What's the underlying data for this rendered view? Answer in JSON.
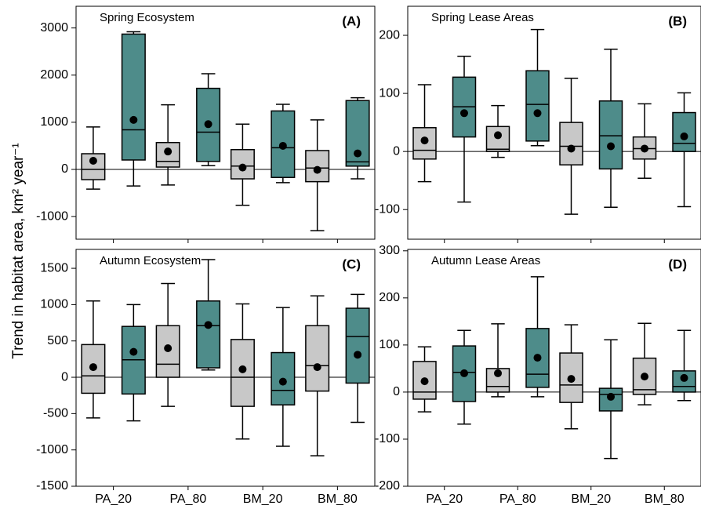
{
  "y_label": "Trend in habitat area, km² year⁻¹",
  "chart_data": [
    {
      "type": "box",
      "title": "Spring Ecosystem",
      "panel_label": "(A)",
      "ylim": [
        -1480,
        3460
      ],
      "yticks": [
        -1000,
        0,
        1000,
        2000,
        3000
      ],
      "groups": [
        {
          "label": "PA_20",
          "boxes": [
            {
              "color": "#c8c8c8",
              "whisker_low": -417,
              "q1": -217,
              "median": 0,
              "q3": 333,
              "whisker_high": 900,
              "mean": 183
            },
            {
              "color": "#4e8c8a",
              "whisker_low": -350,
              "q1": 200,
              "median": 840,
              "q3": 2870,
              "whisker_high": 2920,
              "mean": 1050
            }
          ]
        },
        {
          "label": "PA_80",
          "boxes": [
            {
              "color": "#c8c8c8",
              "whisker_low": -330,
              "q1": 50,
              "median": 170,
              "q3": 570,
              "whisker_high": 1370,
              "mean": 380
            },
            {
              "color": "#4e8c8a",
              "whisker_low": 80,
              "q1": 170,
              "median": 790,
              "q3": 1720,
              "whisker_high": 2030,
              "mean": 960
            }
          ]
        },
        {
          "label": "BM_20",
          "boxes": [
            {
              "color": "#c8c8c8",
              "whisker_low": -760,
              "q1": -200,
              "median": 70,
              "q3": 420,
              "whisker_high": 960,
              "mean": 40
            },
            {
              "color": "#4e8c8a",
              "whisker_low": -280,
              "q1": -170,
              "median": 460,
              "q3": 1240,
              "whisker_high": 1380,
              "mean": 500
            }
          ]
        },
        {
          "label": "BM_80",
          "boxes": [
            {
              "color": "#c8c8c8",
              "whisker_low": -1300,
              "q1": -260,
              "median": 30,
              "q3": 400,
              "whisker_high": 1050,
              "mean": -10
            },
            {
              "color": "#4e8c8a",
              "whisker_low": -200,
              "q1": 70,
              "median": 160,
              "q3": 1460,
              "whisker_high": 1520,
              "mean": 340
            }
          ]
        }
      ]
    },
    {
      "type": "box",
      "title": "Spring Lease Areas",
      "panel_label": "(B)",
      "ylim": [
        -151,
        250
      ],
      "yticks": [
        -100,
        0,
        100,
        200
      ],
      "groups": [
        {
          "label": "PA_20",
          "boxes": [
            {
              "color": "#c8c8c8",
              "whisker_low": -52,
              "q1": -13,
              "median": 2,
              "q3": 41,
              "whisker_high": 115,
              "mean": 19
            },
            {
              "color": "#4e8c8a",
              "whisker_low": -87,
              "q1": 25,
              "median": 77,
              "q3": 128,
              "whisker_high": 164,
              "mean": 66
            }
          ]
        },
        {
          "label": "PA_80",
          "boxes": [
            {
              "color": "#c8c8c8",
              "whisker_low": -10,
              "q1": 0,
              "median": 4,
              "q3": 43,
              "whisker_high": 79,
              "mean": 28
            },
            {
              "color": "#4e8c8a",
              "whisker_low": 10,
              "q1": 18,
              "median": 81,
              "q3": 139,
              "whisker_high": 210,
              "mean": 66
            }
          ]
        },
        {
          "label": "BM_20",
          "boxes": [
            {
              "color": "#c8c8c8",
              "whisker_low": -108,
              "q1": -23,
              "median": 9,
              "q3": 50,
              "whisker_high": 126,
              "mean": 5
            },
            {
              "color": "#4e8c8a",
              "whisker_low": -96,
              "q1": -30,
              "median": 27,
              "q3": 87,
              "whisker_high": 176,
              "mean": 9
            }
          ]
        },
        {
          "label": "BM_80",
          "boxes": [
            {
              "color": "#c8c8c8",
              "whisker_low": -46,
              "q1": -13,
              "median": 5,
              "q3": 25,
              "whisker_high": 82,
              "mean": 5
            },
            {
              "color": "#4e8c8a",
              "whisker_low": -95,
              "q1": 0,
              "median": 14,
              "q3": 67,
              "whisker_high": 101,
              "mean": 26
            }
          ]
        }
      ]
    },
    {
      "type": "box",
      "title": "Autumn Ecosystem",
      "panel_label": "(C)",
      "ylim": [
        -1500,
        1760
      ],
      "yticks": [
        -1500,
        -1000,
        -500,
        0,
        500,
        1000,
        1500
      ],
      "groups": [
        {
          "label": "PA_20",
          "boxes": [
            {
              "color": "#c8c8c8",
              "whisker_low": -560,
              "q1": -220,
              "median": 20,
              "q3": 450,
              "whisker_high": 1050,
              "mean": 140
            },
            {
              "color": "#4e8c8a",
              "whisker_low": -600,
              "q1": -230,
              "median": 240,
              "q3": 700,
              "whisker_high": 1000,
              "mean": 350
            }
          ]
        },
        {
          "label": "PA_80",
          "boxes": [
            {
              "color": "#c8c8c8",
              "whisker_low": -400,
              "q1": 0,
              "median": 180,
              "q3": 710,
              "whisker_high": 1290,
              "mean": 400
            },
            {
              "color": "#4e8c8a",
              "whisker_low": 100,
              "q1": 130,
              "median": 710,
              "q3": 1050,
              "whisker_high": 1620,
              "mean": 720
            }
          ]
        },
        {
          "label": "BM_20",
          "boxes": [
            {
              "color": "#c8c8c8",
              "whisker_low": -850,
              "q1": -400,
              "median": 0,
              "q3": 520,
              "whisker_high": 1010,
              "mean": 110
            },
            {
              "color": "#4e8c8a",
              "whisker_low": -950,
              "q1": -380,
              "median": -180,
              "q3": 340,
              "whisker_high": 960,
              "mean": -60
            }
          ]
        },
        {
          "label": "BM_80",
          "boxes": [
            {
              "color": "#c8c8c8",
              "whisker_low": -1080,
              "q1": -190,
              "median": 160,
              "q3": 710,
              "whisker_high": 1120,
              "mean": 140
            },
            {
              "color": "#4e8c8a",
              "whisker_low": -620,
              "q1": -80,
              "median": 560,
              "q3": 950,
              "whisker_high": 1140,
              "mean": 310
            }
          ]
        }
      ]
    },
    {
      "type": "box",
      "title": "Autumn Lease Areas",
      "panel_label": "(D)",
      "ylim": [
        -200,
        303
      ],
      "yticks": [
        -200,
        -100,
        0,
        100,
        200,
        300
      ],
      "groups": [
        {
          "label": "PA_20",
          "boxes": [
            {
              "color": "#c8c8c8",
              "whisker_low": -42,
              "q1": -15,
              "median": 0,
              "q3": 65,
              "whisker_high": 96,
              "mean": 23
            },
            {
              "color": "#4e8c8a",
              "whisker_low": -68,
              "q1": -20,
              "median": 42,
              "q3": 98,
              "whisker_high": 131,
              "mean": 40
            }
          ]
        },
        {
          "label": "PA_80",
          "boxes": [
            {
              "color": "#c8c8c8",
              "whisker_low": -10,
              "q1": 0,
              "median": 12,
              "q3": 50,
              "whisker_high": 145,
              "mean": 40
            },
            {
              "color": "#4e8c8a",
              "whisker_low": -10,
              "q1": 10,
              "median": 38,
              "q3": 135,
              "whisker_high": 245,
              "mean": 73
            }
          ]
        },
        {
          "label": "BM_20",
          "boxes": [
            {
              "color": "#c8c8c8",
              "whisker_low": -78,
              "q1": -22,
              "median": 15,
              "q3": 83,
              "whisker_high": 143,
              "mean": 28
            },
            {
              "color": "#4e8c8a",
              "whisker_low": -141,
              "q1": -40,
              "median": -5,
              "q3": 8,
              "whisker_high": 111,
              "mean": -10
            }
          ]
        },
        {
          "label": "BM_80",
          "boxes": [
            {
              "color": "#c8c8c8",
              "whisker_low": -27,
              "q1": -5,
              "median": 5,
              "q3": 72,
              "whisker_high": 146,
              "mean": 33
            },
            {
              "color": "#4e8c8a",
              "whisker_low": -18,
              "q1": 0,
              "median": 12,
              "q3": 45,
              "whisker_high": 131,
              "mean": 30
            }
          ]
        }
      ]
    }
  ]
}
